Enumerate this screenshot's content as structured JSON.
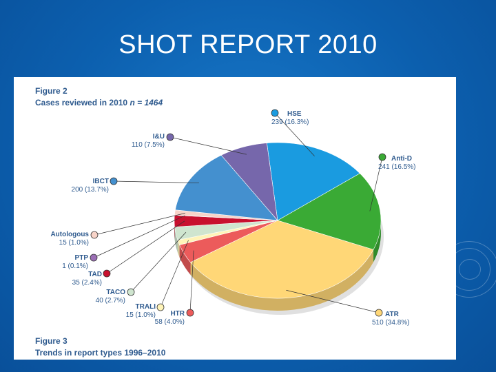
{
  "slide": {
    "title": "SHOT REPORT 2010"
  },
  "figure2": {
    "label": "Figure 2",
    "subtitle_prefix": "Cases reviewed in 2010",
    "subtitle_n": "n = 1464"
  },
  "figure3": {
    "label": "Figure 3",
    "subtitle": "Trends in report types 1996–2010"
  },
  "chart_data": {
    "type": "pie",
    "title": "Cases reviewed in 2010 n = 1464",
    "total": 1464,
    "slices": [
      {
        "name": "HSE",
        "count": 239,
        "value_label": "239 (16.3%)",
        "percent": 16.3,
        "color": "#1a9be0"
      },
      {
        "name": "Anti-D",
        "count": 241,
        "value_label": "241 (16.5%)",
        "percent": 16.5,
        "color": "#3aaa35"
      },
      {
        "name": "ATR",
        "count": 510,
        "value_label": "510 (34.8%)",
        "percent": 34.8,
        "color": "#ffd777"
      },
      {
        "name": "HTR",
        "count": 58,
        "value_label": "58 (4.0%)",
        "percent": 4.0,
        "color": "#ec5b5b"
      },
      {
        "name": "TRALI",
        "count": 15,
        "value_label": "15 (1.0%)",
        "percent": 1.0,
        "color": "#fff4b8"
      },
      {
        "name": "TACO",
        "count": 40,
        "value_label": "40 (2.7%)",
        "percent": 2.7,
        "color": "#cfe5cf"
      },
      {
        "name": "TAD",
        "count": 35,
        "value_label": "35 (2.4%)",
        "percent": 2.4,
        "color": "#c8102e"
      },
      {
        "name": "PTP",
        "count": 1,
        "value_label": "1 (0.1%)",
        "percent": 0.1,
        "color": "#9b6fb5"
      },
      {
        "name": "Autologous",
        "count": 15,
        "value_label": "15 (1.0%)",
        "percent": 1.0,
        "color": "#f7d3c8"
      },
      {
        "name": "IBCT",
        "count": 200,
        "value_label": "200 (13.7%)",
        "percent": 13.7,
        "color": "#4490cf"
      },
      {
        "name": "I&U",
        "count": 110,
        "value_label": "110 (7.5%)",
        "percent": 7.5,
        "color": "#7667ab"
      }
    ]
  }
}
